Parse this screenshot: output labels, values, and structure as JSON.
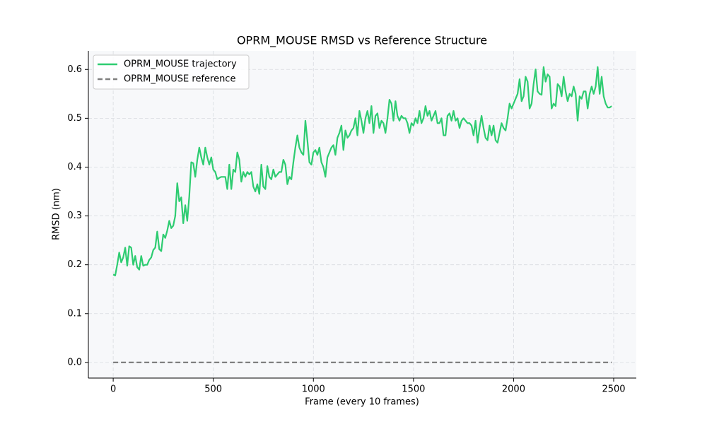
{
  "chart_data": {
    "type": "line",
    "title": "OPRM_MOUSE RMSD vs Reference Structure",
    "x_label": "Frame (every 10 frames)",
    "y_label": "RMSD (nm)",
    "xlim": [
      -124,
      2613
    ],
    "ylim": [
      -0.032,
      0.638
    ],
    "xticks": [
      0,
      500,
      1000,
      1500,
      2000,
      2500
    ],
    "yticks": [
      {
        "value": 0,
        "label": "0.0"
      },
      0.1,
      0.2,
      0.3,
      0.4,
      0.5,
      0.6
    ],
    "grid": true,
    "legend": "upper-left",
    "series": [
      {
        "name": "OPRM_MOUSE trajectory",
        "color": "#2ecc71",
        "style": "solid",
        "x": [
          0,
          10,
          20,
          30,
          40,
          50,
          60,
          70,
          80,
          90,
          100,
          110,
          120,
          130,
          140,
          150,
          160,
          170,
          180,
          190,
          200,
          210,
          220,
          230,
          240,
          250,
          260,
          270,
          280,
          290,
          300,
          310,
          320,
          330,
          340,
          350,
          360,
          370,
          380,
          390,
          400,
          410,
          420,
          430,
          440,
          450,
          460,
          470,
          480,
          490,
          500,
          510,
          520,
          530,
          540,
          550,
          560,
          570,
          580,
          590,
          600,
          610,
          620,
          630,
          640,
          650,
          660,
          670,
          680,
          690,
          700,
          710,
          720,
          730,
          740,
          750,
          760,
          770,
          780,
          790,
          800,
          810,
          820,
          830,
          840,
          850,
          860,
          870,
          880,
          890,
          900,
          910,
          920,
          930,
          940,
          950,
          960,
          970,
          980,
          990,
          1000,
          1010,
          1020,
          1030,
          1040,
          1050,
          1060,
          1070,
          1080,
          1090,
          1100,
          1110,
          1120,
          1130,
          1140,
          1150,
          1160,
          1170,
          1180,
          1190,
          1200,
          1210,
          1220,
          1230,
          1240,
          1250,
          1260,
          1270,
          1280,
          1290,
          1300,
          1310,
          1320,
          1330,
          1340,
          1350,
          1360,
          1370,
          1380,
          1390,
          1400,
          1410,
          1420,
          1430,
          1440,
          1450,
          1460,
          1470,
          1480,
          1490,
          1500,
          1510,
          1520,
          1530,
          1540,
          1550,
          1560,
          1570,
          1580,
          1590,
          1600,
          1610,
          1620,
          1630,
          1640,
          1650,
          1660,
          1670,
          1680,
          1690,
          1700,
          1710,
          1720,
          1730,
          1740,
          1750,
          1760,
          1770,
          1780,
          1790,
          1800,
          1810,
          1820,
          1830,
          1840,
          1850,
          1860,
          1870,
          1880,
          1890,
          1900,
          1910,
          1920,
          1930,
          1940,
          1950,
          1960,
          1970,
          1980,
          1990,
          2000,
          2010,
          2020,
          2030,
          2040,
          2050,
          2060,
          2070,
          2080,
          2090,
          2100,
          2110,
          2120,
          2130,
          2140,
          2150,
          2160,
          2170,
          2180,
          2190,
          2200,
          2210,
          2220,
          2230,
          2240,
          2250,
          2260,
          2270,
          2280,
          2290,
          2300,
          2310,
          2320,
          2330,
          2340,
          2350,
          2360,
          2370,
          2380,
          2390,
          2400,
          2410,
          2420,
          2430,
          2440,
          2450,
          2460,
          2470,
          2480,
          2490
        ],
        "values": [
          0.18,
          0.178,
          0.2,
          0.225,
          0.205,
          0.215,
          0.235,
          0.198,
          0.238,
          0.235,
          0.2,
          0.218,
          0.195,
          0.19,
          0.218,
          0.198,
          0.2,
          0.2,
          0.21,
          0.215,
          0.23,
          0.235,
          0.268,
          0.232,
          0.228,
          0.262,
          0.255,
          0.27,
          0.29,
          0.275,
          0.28,
          0.3,
          0.367,
          0.33,
          0.338,
          0.285,
          0.322,
          0.29,
          0.34,
          0.41,
          0.408,
          0.38,
          0.415,
          0.44,
          0.42,
          0.405,
          0.44,
          0.42,
          0.405,
          0.42,
          0.395,
          0.39,
          0.375,
          0.378,
          0.38,
          0.38,
          0.38,
          0.355,
          0.405,
          0.355,
          0.395,
          0.39,
          0.43,
          0.415,
          0.37,
          0.39,
          0.38,
          0.39,
          0.385,
          0.39,
          0.36,
          0.35,
          0.365,
          0.345,
          0.405,
          0.36,
          0.355,
          0.402,
          0.38,
          0.375,
          0.395,
          0.38,
          0.385,
          0.39,
          0.39,
          0.415,
          0.405,
          0.365,
          0.38,
          0.375,
          0.41,
          0.44,
          0.465,
          0.44,
          0.43,
          0.425,
          0.495,
          0.455,
          0.41,
          0.405,
          0.43,
          0.435,
          0.425,
          0.44,
          0.41,
          0.4,
          0.38,
          0.42,
          0.43,
          0.44,
          0.445,
          0.425,
          0.46,
          0.47,
          0.485,
          0.435,
          0.475,
          0.46,
          0.465,
          0.475,
          0.48,
          0.5,
          0.465,
          0.515,
          0.495,
          0.47,
          0.5,
          0.515,
          0.49,
          0.525,
          0.47,
          0.505,
          0.51,
          0.48,
          0.495,
          0.49,
          0.47,
          0.5,
          0.538,
          0.53,
          0.495,
          0.535,
          0.505,
          0.495,
          0.505,
          0.5,
          0.5,
          0.49,
          0.47,
          0.49,
          0.485,
          0.5,
          0.49,
          0.515,
          0.49,
          0.5,
          0.525,
          0.505,
          0.515,
          0.495,
          0.505,
          0.515,
          0.49,
          0.49,
          0.5,
          0.465,
          0.465,
          0.505,
          0.51,
          0.495,
          0.515,
          0.495,
          0.5,
          0.48,
          0.495,
          0.5,
          0.495,
          0.49,
          0.49,
          0.485,
          0.465,
          0.495,
          0.45,
          0.48,
          0.505,
          0.48,
          0.46,
          0.455,
          0.485,
          0.465,
          0.485,
          0.455,
          0.45,
          0.47,
          0.49,
          0.48,
          0.475,
          0.5,
          0.53,
          0.52,
          0.53,
          0.54,
          0.55,
          0.58,
          0.535,
          0.545,
          0.585,
          0.575,
          0.52,
          0.53,
          0.57,
          0.6,
          0.555,
          0.55,
          0.548,
          0.605,
          0.575,
          0.59,
          0.585,
          0.52,
          0.53,
          0.525,
          0.57,
          0.565,
          0.545,
          0.585,
          0.555,
          0.535,
          0.55,
          0.545,
          0.565,
          0.55,
          0.495,
          0.545,
          0.54,
          0.555,
          0.555,
          0.52,
          0.55,
          0.565,
          0.55,
          0.565,
          0.605,
          0.55,
          0.585,
          0.545,
          0.53,
          0.522,
          0.522,
          0.525
        ]
      },
      {
        "name": "OPRM_MOUSE reference",
        "color": "#7f7f7f",
        "style": "dashed",
        "x": [
          0,
          2490
        ],
        "values": [
          0,
          0
        ]
      }
    ]
  }
}
